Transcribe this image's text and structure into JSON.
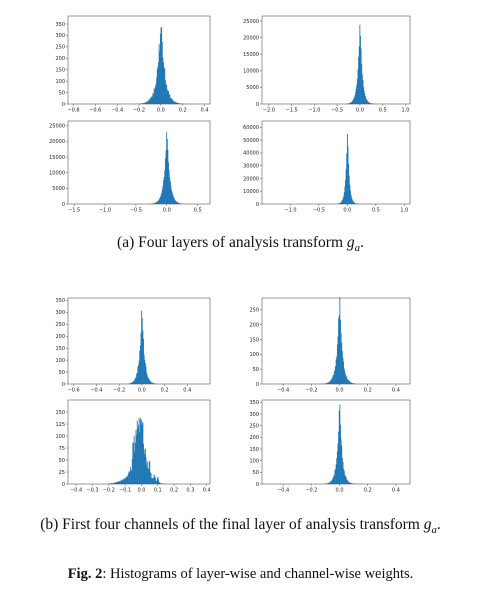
{
  "captions": {
    "a_prefix": "(a) Four layers of analysis transform ",
    "a_symbol": "g",
    "a_subscript": "a",
    "a_suffix": ".",
    "b_prefix": "(b) First four channels of the final layer of analysis transform ",
    "b_symbol": "g",
    "b_subscript": "a",
    "b_suffix": ".",
    "fig_label": "Fig. 2",
    "fig_text": ": Histograms of layer-wise and channel-wise weights."
  },
  "colors": {
    "bars": "#1f77b4",
    "axes": "#555555",
    "background": "#ffffff"
  },
  "chart_data": [
    {
      "type": "histogram",
      "group": "a",
      "xlim": [
        -0.85,
        0.45
      ],
      "ylim": [
        0,
        385
      ],
      "xticks": [
        -0.8,
        -0.6,
        -0.4,
        -0.2,
        0.0,
        0.2,
        0.4
      ],
      "xtick_labels": [
        "−0.8",
        "−0.6",
        "−0.4",
        "−0.2",
        "0.0",
        "0.2",
        "0.4"
      ],
      "yticks": [
        0,
        50,
        100,
        150,
        200,
        250,
        300,
        350
      ],
      "ytick_labels": [
        "0",
        "50",
        "100",
        "150",
        "200",
        "250",
        "300",
        "350"
      ],
      "center": 0.0,
      "peak": 370,
      "scale_left": 0.035,
      "scale_right": 0.035,
      "shape": "laplace",
      "support": [
        -0.55,
        0.3
      ],
      "noise": 0.3,
      "spikes": []
    },
    {
      "type": "histogram",
      "group": "a",
      "xlim": [
        -2.15,
        1.1
      ],
      "ylim": [
        0,
        26500
      ],
      "xticks": [
        -2.0,
        -1.5,
        -1.0,
        -0.5,
        0.0,
        0.5,
        1.0
      ],
      "xtick_labels": [
        "−2.0",
        "−1.5",
        "−1.0",
        "−0.5",
        "0.0",
        "0.5",
        "1.0"
      ],
      "yticks": [
        0,
        5000,
        10000,
        15000,
        20000,
        25000
      ],
      "ytick_labels": [
        "0",
        "5000",
        "10000",
        "15000",
        "20000",
        "25000"
      ],
      "center": 0.0,
      "peak": 25500,
      "scale_left": 0.05,
      "scale_right": 0.05,
      "shape": "laplace",
      "support": [
        -0.7,
        0.5
      ],
      "noise": 0.1,
      "spikes": []
    },
    {
      "type": "histogram",
      "group": "a",
      "xlim": [
        -1.6,
        0.7
      ],
      "ylim": [
        0,
        26500
      ],
      "xticks": [
        -1.5,
        -1.0,
        -0.5,
        0.0,
        0.5
      ],
      "xtick_labels": [
        "−1.5",
        "−1.0",
        "−0.5",
        "0.0",
        "0.5"
      ],
      "yticks": [
        0,
        5000,
        10000,
        15000,
        20000,
        25000
      ],
      "ytick_labels": [
        "0",
        "5000",
        "10000",
        "15000",
        "20000",
        "25000"
      ],
      "center": 0.0,
      "peak": 24500,
      "scale_left": 0.045,
      "scale_right": 0.045,
      "shape": "laplace",
      "support": [
        -0.5,
        0.3
      ],
      "noise": 0.1,
      "spikes": []
    },
    {
      "type": "histogram",
      "group": "a",
      "xlim": [
        -1.5,
        1.1
      ],
      "ylim": [
        0,
        65000
      ],
      "xticks": [
        -1.0,
        -0.5,
        0.0,
        0.5,
        1.0
      ],
      "xtick_labels": [
        "−1.0",
        "−0.5",
        "0.0",
        "0.5",
        "1.0"
      ],
      "yticks": [
        0,
        10000,
        20000,
        30000,
        40000,
        50000,
        60000
      ],
      "ytick_labels": [
        "0",
        "10000",
        "20000",
        "30000",
        "40000",
        "50000",
        "60000"
      ],
      "center": 0.0,
      "peak": 61000,
      "scale_left": 0.03,
      "scale_right": 0.03,
      "shape": "laplace",
      "support": [
        -0.35,
        0.35
      ],
      "noise": 0.1,
      "spikes": []
    },
    {
      "type": "histogram",
      "group": "b",
      "xlim": [
        -0.65,
        0.6
      ],
      "ylim": [
        0,
        360
      ],
      "xticks": [
        -0.6,
        -0.4,
        -0.2,
        0.0,
        0.2,
        0.4
      ],
      "xtick_labels": [
        "−0.6",
        "−0.4",
        "−0.2",
        "0.0",
        "0.2",
        "0.4"
      ],
      "yticks": [
        0,
        50,
        100,
        150,
        200,
        250,
        300,
        350
      ],
      "ytick_labels": [
        "0",
        "50",
        "100",
        "150",
        "200",
        "250",
        "300",
        "350"
      ],
      "center": 0.0,
      "peak": 330,
      "scale_left": 0.022,
      "scale_right": 0.022,
      "shape": "laplace",
      "support": [
        -0.3,
        0.25
      ],
      "noise": 0.25,
      "spikes": []
    },
    {
      "type": "histogram",
      "group": "b",
      "xlim": [
        -0.55,
        0.5
      ],
      "ylim": [
        0,
        290
      ],
      "xticks": [
        -0.4,
        -0.2,
        0.0,
        0.2,
        0.4
      ],
      "xtick_labels": [
        "−0.4",
        "−0.2",
        "0.0",
        "0.2",
        "0.4"
      ],
      "yticks": [
        0,
        50,
        100,
        150,
        200,
        250
      ],
      "ytick_labels": [
        "0",
        "50",
        "100",
        "150",
        "200",
        "250"
      ],
      "center": 0.0,
      "peak": 285,
      "scale_left": 0.02,
      "scale_right": 0.02,
      "shape": "laplace",
      "support": [
        -0.25,
        0.25
      ],
      "noise": 0.25,
      "spikes": []
    },
    {
      "type": "histogram",
      "group": "b",
      "xlim": [
        -0.45,
        0.42
      ],
      "ylim": [
        0,
        175
      ],
      "xticks": [
        -0.4,
        -0.3,
        -0.2,
        -0.1,
        0.0,
        0.1,
        0.2,
        0.3,
        0.4
      ],
      "xtick_labels": [
        "−0.4",
        "−0.3",
        "−0.2",
        "−0.1",
        "0.0",
        "0.1",
        "0.2",
        "0.3",
        "0.4"
      ],
      "yticks": [
        0,
        25,
        50,
        75,
        100,
        125,
        150
      ],
      "ytick_labels": [
        "0",
        "25",
        "50",
        "75",
        "100",
        "125",
        "150"
      ],
      "center": 0.0,
      "peak": 162,
      "scale_left": 0.04,
      "scale_right": 0.025,
      "shape": "laplace",
      "support": [
        -0.2,
        0.15
      ],
      "noise": 0.45,
      "spikes": [
        [
          -0.05,
          60
        ],
        [
          -0.03,
          45
        ],
        [
          0.05,
          20
        ],
        [
          0.08,
          14
        ],
        [
          0.1,
          10
        ]
      ]
    },
    {
      "type": "histogram",
      "group": "b",
      "xlim": [
        -0.55,
        0.5
      ],
      "ylim": [
        0,
        360
      ],
      "xticks": [
        -0.4,
        -0.2,
        0.0,
        0.2,
        0.4
      ],
      "xtick_labels": [
        "−0.4",
        "−0.2",
        "0.0",
        "0.2",
        "0.4"
      ],
      "yticks": [
        0,
        50,
        100,
        150,
        200,
        250,
        300,
        350
      ],
      "ytick_labels": [
        "0",
        "50",
        "100",
        "150",
        "200",
        "250",
        "300",
        "350"
      ],
      "center": 0.0,
      "peak": 350,
      "scale_left": 0.018,
      "scale_right": 0.018,
      "shape": "laplace",
      "support": [
        -0.2,
        0.2
      ],
      "noise": 0.25,
      "spikes": []
    }
  ]
}
